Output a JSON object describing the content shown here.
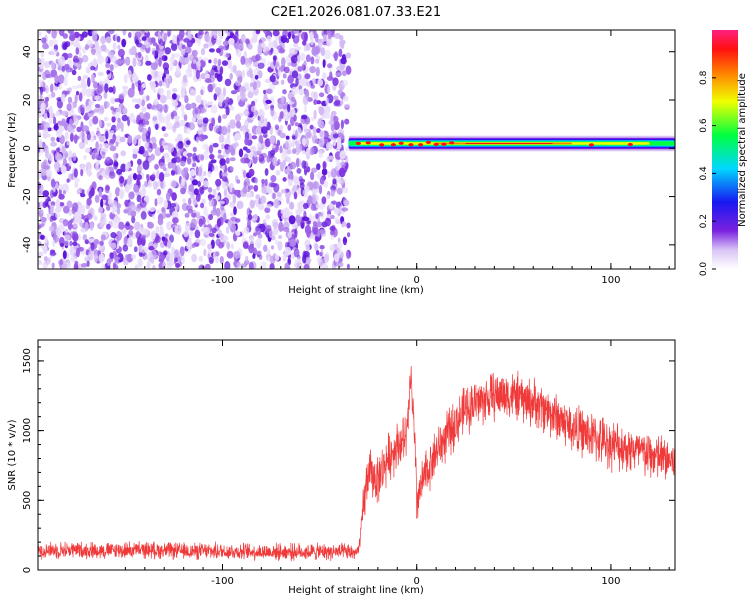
{
  "title": "C2E1.2026.081.07.33.E21",
  "chart_data": [
    {
      "type": "heatmap",
      "xlabel": "Height of straight line (km)",
      "ylabel": "Frequency (Hz)",
      "xlim": [
        -195,
        133
      ],
      "ylim": [
        -50,
        49
      ],
      "xticks": [
        -100,
        0,
        100
      ],
      "xtick_labels": [
        "-100",
        "0",
        "100"
      ],
      "yticks": [
        -40,
        -20,
        0,
        20,
        40
      ],
      "ytick_labels": [
        "-40",
        "-20",
        "0",
        "20",
        "40"
      ],
      "noise_region_x": [
        -195,
        -35
      ],
      "signal_band": {
        "x": [
          -35,
          133
        ],
        "center_hz": 2,
        "width_hz": 4
      },
      "colorbar": {
        "label": "Normalized spectral amplitude",
        "range": [
          0.0,
          1.0
        ],
        "ticks": [
          0.0,
          0.2,
          0.4,
          0.6,
          0.8
        ],
        "tick_labels": [
          "0.0",
          "0.2",
          "0.4",
          "0.6",
          "0.8"
        ]
      }
    },
    {
      "type": "line",
      "color": "#f03a3a",
      "xlabel": "Height of straight line (km)",
      "ylabel": "SNR (10 * v/v)",
      "xlim": [
        -195,
        133
      ],
      "ylim": [
        0,
        1650
      ],
      "xticks": [
        -100,
        0,
        100
      ],
      "xtick_labels": [
        "-100",
        "0",
        "100"
      ],
      "yticks": [
        0,
        500,
        1000,
        1500
      ],
      "ytick_labels": [
        "0",
        "500",
        "1000",
        "1500"
      ],
      "series": [
        {
          "name": "SNR",
          "x": [
            -195,
            -180,
            -160,
            -140,
            -120,
            -100,
            -80,
            -60,
            -40,
            -30,
            -27,
            -25,
            -20,
            -15,
            -10,
            -5,
            -3,
            -1,
            0,
            5,
            10,
            15,
            20,
            25,
            30,
            35,
            40,
            45,
            50,
            55,
            60,
            70,
            80,
            90,
            100,
            110,
            120,
            133
          ],
          "y": [
            140,
            145,
            140,
            145,
            135,
            135,
            130,
            130,
            130,
            125,
            500,
            700,
            650,
            800,
            900,
            950,
            1400,
            900,
            500,
            700,
            850,
            950,
            1050,
            1150,
            1200,
            1220,
            1250,
            1260,
            1250,
            1220,
            1200,
            1120,
            1020,
            960,
            900,
            870,
            820,
            780
          ]
        }
      ]
    }
  ]
}
